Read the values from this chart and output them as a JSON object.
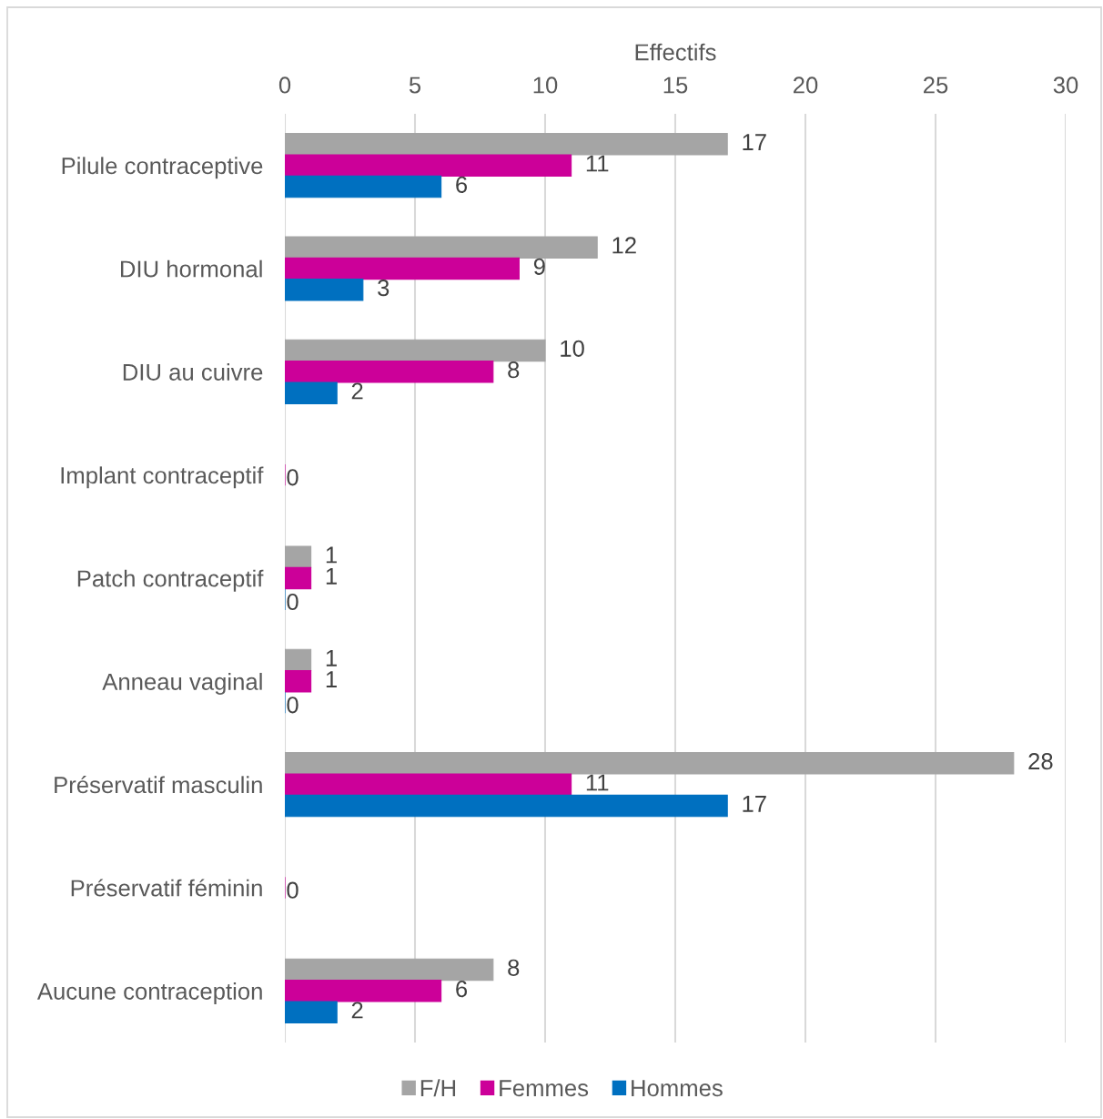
{
  "chart_data": {
    "type": "bar",
    "orientation": "horizontal",
    "xlabel": "Effectifs",
    "categories": [
      "Pilule contraceptive",
      "DIU hormonal",
      "DIU au cuivre",
      "Implant contraceptif",
      "Patch contraceptif",
      "Anneau vaginal",
      "Préservatif masculin",
      "Préservatif féminin",
      "Aucune contraception"
    ],
    "series": [
      {
        "name": "F/H",
        "color": "#a5a5a5",
        "values": [
          17,
          12,
          10,
          null,
          1,
          1,
          28,
          null,
          8
        ]
      },
      {
        "name": "Femmes",
        "color": "#cc0099",
        "values": [
          11,
          9,
          8,
          0,
          1,
          1,
          11,
          0,
          6
        ]
      },
      {
        "name": "Hommes",
        "color": "#0070c0",
        "values": [
          6,
          3,
          2,
          null,
          0,
          0,
          17,
          null,
          2
        ]
      }
    ],
    "xlim": [
      0,
      30
    ],
    "xticks": [
      0,
      5,
      10,
      15,
      20,
      25,
      30
    ],
    "grid": "x",
    "legend": "bottom",
    "data_labels": true
  }
}
